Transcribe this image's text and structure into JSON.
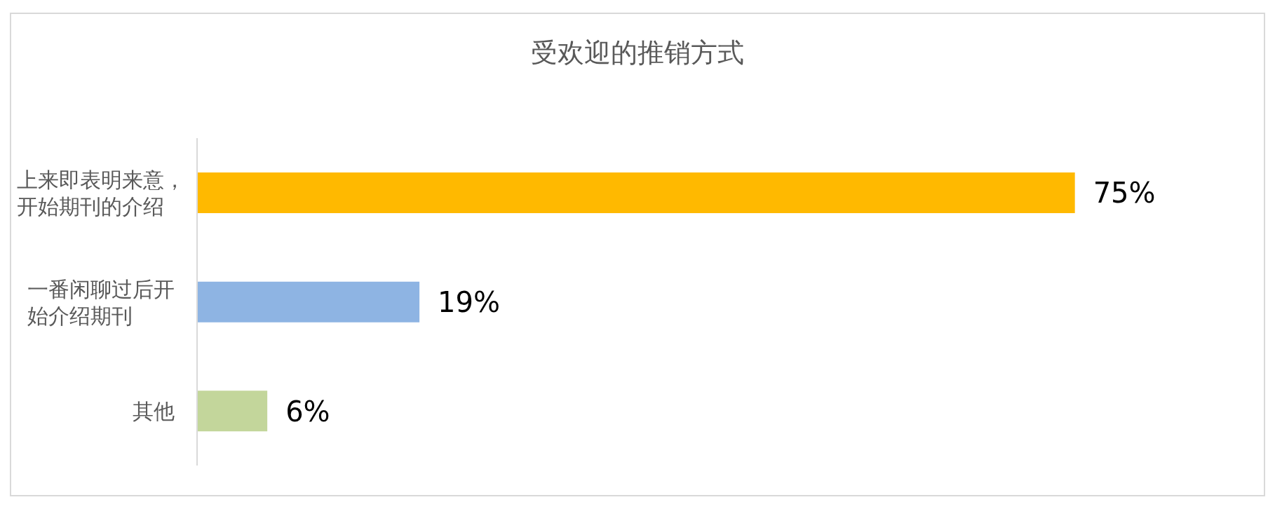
{
  "chart_data": {
    "type": "bar",
    "orientation": "horizontal",
    "title": "受欢迎的推销方式",
    "categories": [
      "上来即表明来意，开始期刊的介绍",
      "一番闲聊过后开始介绍期刊",
      "其他"
    ],
    "values": [
      75,
      19,
      6
    ],
    "colors": [
      "#ffb900",
      "#8eb4e3",
      "#c3d69b"
    ],
    "value_labels": [
      "75%",
      "19%",
      "6%"
    ]
  }
}
